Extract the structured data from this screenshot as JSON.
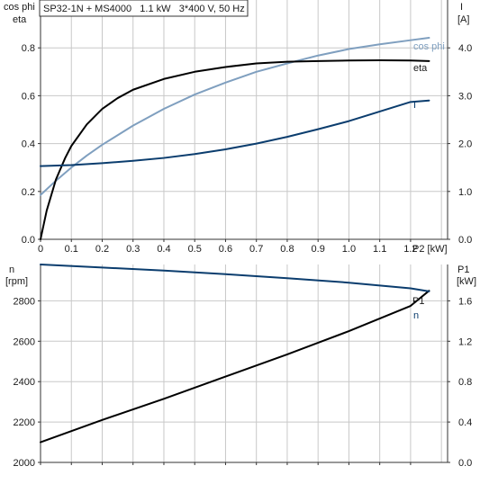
{
  "colors": {
    "background": "#ffffff",
    "grid": "#c8c8c8",
    "axis": "#333333",
    "text": "#1a1a1a",
    "eta": "#000000",
    "cosphi": "#7f9fbf",
    "current": "#0b3d6e",
    "speed": "#0b3d6e",
    "p1": "#000000"
  },
  "chart_data": [
    {
      "type": "line",
      "title": "SP32-1N + MS4000   1.1 kW   3*400 V, 50 Hz",
      "xlabel": "P2 [kW]",
      "left_axis_label_line1": "cos phi",
      "left_axis_label_line2": "eta",
      "right_axis_label_line1": "I",
      "right_axis_label_line2": "[A]",
      "xlim": [
        0,
        1.32
      ],
      "ylim_left": [
        0,
        1.0
      ],
      "ylim_right": [
        0,
        5.0
      ],
      "x_ticks": [
        "0",
        "0.1",
        "0.2",
        "0.3",
        "0.4",
        "0.5",
        "0.6",
        "0.7",
        "0.8",
        "0.9",
        "1.0",
        "1.1",
        "1.2"
      ],
      "x_tick_values": [
        0,
        0.1,
        0.2,
        0.3,
        0.4,
        0.5,
        0.6,
        0.7,
        0.8,
        0.9,
        1.0,
        1.1,
        1.2
      ],
      "y_left_ticks": [
        "0.0",
        "0.2",
        "0.4",
        "0.6",
        "0.8"
      ],
      "y_left_tick_values": [
        0,
        0.2,
        0.4,
        0.6,
        0.8
      ],
      "y_right_ticks": [
        "0.0",
        "1.0",
        "2.0",
        "3.0",
        "4.0"
      ],
      "y_right_tick_values": [
        0,
        1,
        2,
        3,
        4
      ],
      "grid": true,
      "series": [
        {
          "name": "cos phi",
          "axis": "left",
          "color": "#7f9fbf",
          "x": [
            0,
            0.05,
            0.1,
            0.15,
            0.2,
            0.3,
            0.4,
            0.5,
            0.6,
            0.7,
            0.8,
            0.9,
            1.0,
            1.1,
            1.2,
            1.26
          ],
          "y": [
            0.185,
            0.245,
            0.3,
            0.35,
            0.395,
            0.475,
            0.545,
            0.605,
            0.655,
            0.7,
            0.735,
            0.768,
            0.795,
            0.815,
            0.832,
            0.842
          ]
        },
        {
          "name": "eta",
          "axis": "left",
          "color": "#000000",
          "x": [
            0,
            0.02,
            0.05,
            0.08,
            0.1,
            0.15,
            0.2,
            0.25,
            0.3,
            0.4,
            0.5,
            0.6,
            0.7,
            0.8,
            0.9,
            1.0,
            1.1,
            1.2,
            1.26
          ],
          "y": [
            0,
            0.12,
            0.25,
            0.34,
            0.39,
            0.48,
            0.545,
            0.59,
            0.625,
            0.67,
            0.7,
            0.72,
            0.735,
            0.742,
            0.745,
            0.747,
            0.748,
            0.747,
            0.745
          ]
        },
        {
          "name": "I",
          "axis": "right",
          "color": "#0b3d6e",
          "x": [
            0,
            0.1,
            0.2,
            0.3,
            0.4,
            0.5,
            0.6,
            0.7,
            0.8,
            0.9,
            1.0,
            1.1,
            1.2,
            1.26
          ],
          "y": [
            1.53,
            1.55,
            1.59,
            1.64,
            1.7,
            1.78,
            1.88,
            2.0,
            2.14,
            2.3,
            2.47,
            2.67,
            2.87,
            2.9
          ]
        }
      ]
    },
    {
      "type": "line",
      "left_axis_label_line1": "n",
      "left_axis_label_line2": "[rpm]",
      "right_axis_label_line1": "P1",
      "right_axis_label_line2": "[kW]",
      "xlim": [
        0,
        1.32
      ],
      "ylim_left": [
        2000,
        2980
      ],
      "ylim_right": [
        0,
        1.96
      ],
      "y_left_ticks": [
        "2000",
        "2200",
        "2400",
        "2600",
        "2800"
      ],
      "y_left_tick_values": [
        2000,
        2200,
        2400,
        2600,
        2800
      ],
      "y_right_ticks": [
        "0.0",
        "0.4",
        "0.8",
        "1.2",
        "1.6"
      ],
      "y_right_tick_values": [
        0,
        0.4,
        0.8,
        1.2,
        1.6
      ],
      "grid": true,
      "series": [
        {
          "name": "P1",
          "axis": "right",
          "color": "#000000",
          "x": [
            0,
            0.2,
            0.4,
            0.6,
            0.8,
            1.0,
            1.2,
            1.26
          ],
          "y": [
            0.2,
            0.42,
            0.63,
            0.85,
            1.07,
            1.3,
            1.55,
            1.7
          ]
        },
        {
          "name": "n",
          "axis": "left",
          "color": "#0b3d6e",
          "x": [
            0,
            0.2,
            0.4,
            0.6,
            0.8,
            1.0,
            1.2,
            1.26
          ],
          "y": [
            2980,
            2965,
            2950,
            2932,
            2912,
            2890,
            2862,
            2847
          ]
        }
      ]
    }
  ]
}
